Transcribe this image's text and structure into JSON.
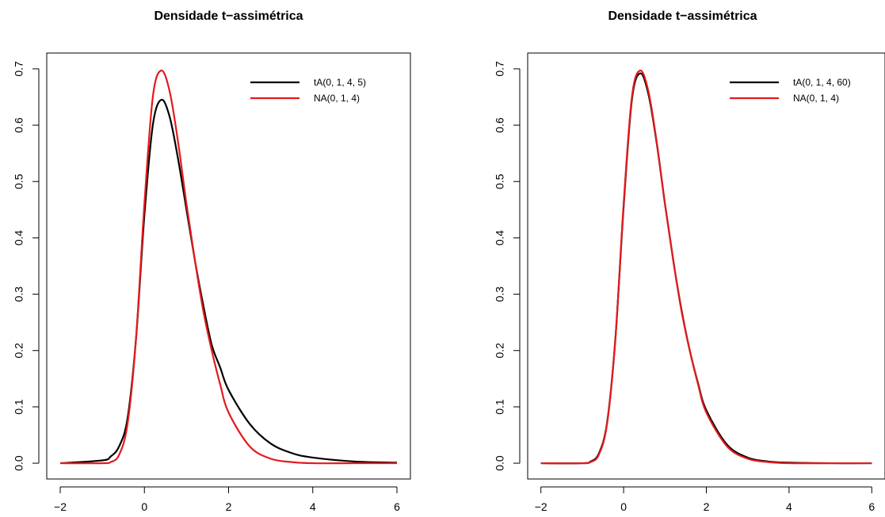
{
  "chart_data": [
    {
      "type": "line",
      "title": "Densidade t−assimétrica",
      "xlim": [
        -2,
        6
      ],
      "ylim": [
        0,
        0.7
      ],
      "xticks": [
        -2,
        0,
        2,
        4,
        6
      ],
      "yticks": [
        0.0,
        0.1,
        0.2,
        0.3,
        0.4,
        0.5,
        0.6,
        0.7
      ],
      "xtick_labels": [
        "−2",
        "0",
        "2",
        "4",
        "6"
      ],
      "ytick_labels": [
        "0.0",
        "0.1",
        "0.2",
        "0.3",
        "0.4",
        "0.5",
        "0.6",
        "0.7"
      ],
      "legend_position": "top-right",
      "series": [
        {
          "name": "tA(0, 1, 4, 5)",
          "color": "#000000",
          "x": [
            -2,
            -1,
            -0.8,
            -0.6,
            -0.4,
            -0.2,
            0,
            0.2,
            0.4,
            0.6,
            0.8,
            1.0,
            1.2,
            1.4,
            1.6,
            1.8,
            2.0,
            2.5,
            3.0,
            3.5,
            4.0,
            5.0,
            6.0
          ],
          "y": [
            0.0,
            0.005,
            0.012,
            0.03,
            0.08,
            0.22,
            0.44,
            0.6,
            0.645,
            0.615,
            0.54,
            0.45,
            0.36,
            0.28,
            0.21,
            0.17,
            0.13,
            0.07,
            0.035,
            0.018,
            0.01,
            0.003,
            0.001
          ]
        },
        {
          "name": "NA(0, 1, 4)",
          "color": "#e41a1c",
          "x": [
            -2,
            -1,
            -0.8,
            -0.6,
            -0.4,
            -0.2,
            0,
            0.2,
            0.4,
            0.6,
            0.8,
            1.0,
            1.2,
            1.4,
            1.6,
            1.8,
            2.0,
            2.5,
            3.0,
            3.5,
            4.0,
            5.0,
            6.0
          ],
          "y": [
            0.0,
            0.0,
            0.002,
            0.015,
            0.07,
            0.22,
            0.46,
            0.65,
            0.697,
            0.66,
            0.57,
            0.46,
            0.36,
            0.27,
            0.2,
            0.14,
            0.09,
            0.03,
            0.008,
            0.002,
            0.0,
            0.0,
            0.0
          ]
        }
      ]
    },
    {
      "type": "line",
      "title": "Densidade t−assimétrica",
      "xlim": [
        -2,
        6
      ],
      "ylim": [
        0,
        0.7
      ],
      "xticks": [
        -2,
        0,
        2,
        4,
        6
      ],
      "yticks": [
        0.0,
        0.1,
        0.2,
        0.3,
        0.4,
        0.5,
        0.6,
        0.7
      ],
      "xtick_labels": [
        "−2",
        "0",
        "2",
        "4",
        "6"
      ],
      "ytick_labels": [
        "0.0",
        "0.1",
        "0.2",
        "0.3",
        "0.4",
        "0.5",
        "0.6",
        "0.7"
      ],
      "legend_position": "top-right",
      "series": [
        {
          "name": "tA(0, 1, 4, 60)",
          "color": "#000000",
          "x": [
            -2,
            -1,
            -0.8,
            -0.6,
            -0.4,
            -0.2,
            0,
            0.2,
            0.4,
            0.6,
            0.8,
            1.0,
            1.2,
            1.4,
            1.6,
            1.8,
            2.0,
            2.5,
            3.0,
            3.5,
            4.0,
            5.0,
            6.0
          ],
          "y": [
            0.0,
            0.0,
            0.003,
            0.017,
            0.072,
            0.22,
            0.455,
            0.645,
            0.692,
            0.655,
            0.568,
            0.46,
            0.36,
            0.272,
            0.2,
            0.142,
            0.094,
            0.033,
            0.01,
            0.003,
            0.001,
            0.0,
            0.0
          ]
        },
        {
          "name": "NA(0, 1, 4)",
          "color": "#e41a1c",
          "x": [
            -2,
            -1,
            -0.8,
            -0.6,
            -0.4,
            -0.2,
            0,
            0.2,
            0.4,
            0.6,
            0.8,
            1.0,
            1.2,
            1.4,
            1.6,
            1.8,
            2.0,
            2.5,
            3.0,
            3.5,
            4.0,
            5.0,
            6.0
          ],
          "y": [
            0.0,
            0.0,
            0.002,
            0.015,
            0.07,
            0.22,
            0.46,
            0.65,
            0.697,
            0.66,
            0.57,
            0.46,
            0.36,
            0.27,
            0.2,
            0.14,
            0.09,
            0.03,
            0.008,
            0.002,
            0.0,
            0.0,
            0.0
          ]
        }
      ]
    }
  ]
}
